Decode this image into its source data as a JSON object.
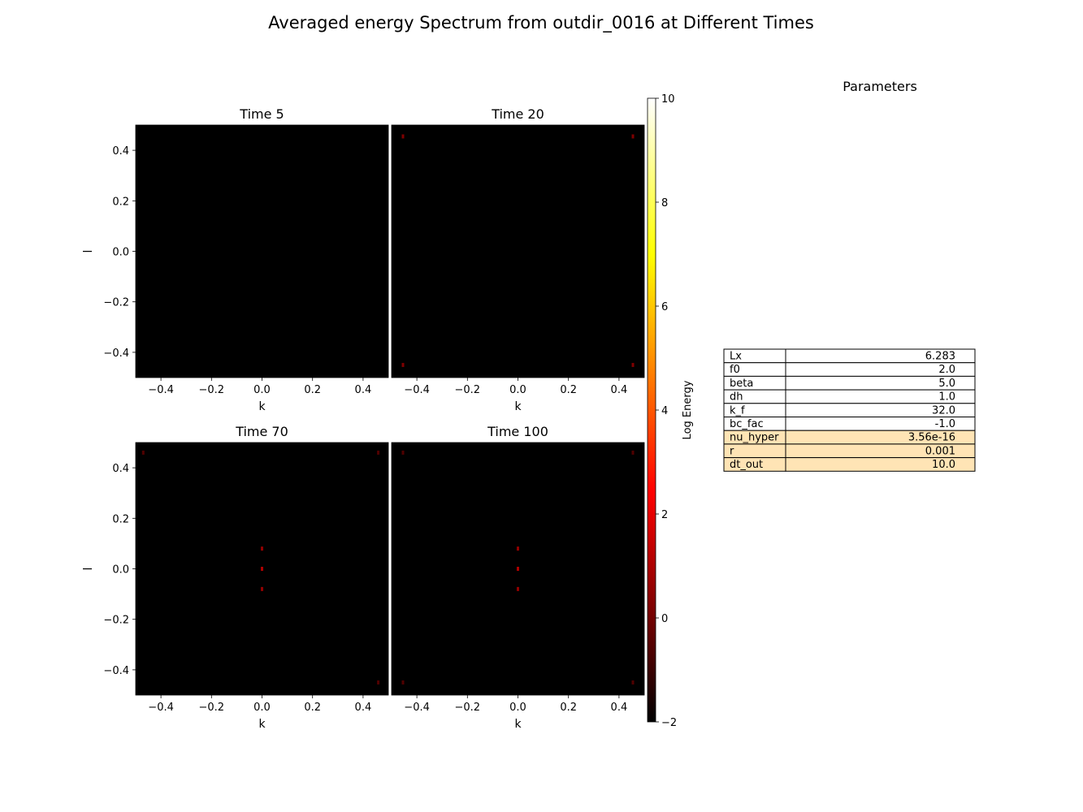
{
  "figure": {
    "title": "Averaged energy Spectrum from outdir_0016 at Different Times"
  },
  "chart_data": [
    {
      "type": "heatmap",
      "title": "Time 5",
      "xlabel": "k",
      "ylabel": "l",
      "xlim": [
        -0.5,
        0.5
      ],
      "ylim": [
        -0.5,
        0.5
      ],
      "xticks": [
        -0.4,
        -0.2,
        0.0,
        0.2,
        0.4
      ],
      "yticks": [
        -0.4,
        -0.2,
        0.0,
        0.2,
        0.4
      ],
      "background_value": -2,
      "points": []
    },
    {
      "type": "heatmap",
      "title": "Time 20",
      "xlabel": "k",
      "ylabel": "",
      "xlim": [
        -0.5,
        0.5
      ],
      "ylim": [
        -0.5,
        0.5
      ],
      "xticks": [
        -0.4,
        -0.2,
        0.0,
        0.2,
        0.4
      ],
      "yticks": [],
      "background_value": -2,
      "points": [
        {
          "k": -0.455,
          "l": 0.455,
          "v": 0.2
        },
        {
          "k": 0.455,
          "l": 0.455,
          "v": 0.2
        },
        {
          "k": -0.455,
          "l": -0.45,
          "v": 0.2
        },
        {
          "k": 0.455,
          "l": -0.45,
          "v": 0.2
        }
      ]
    },
    {
      "type": "heatmap",
      "title": "Time 70",
      "xlabel": "k",
      "ylabel": "l",
      "xlim": [
        -0.5,
        0.5
      ],
      "ylim": [
        -0.5,
        0.5
      ],
      "xticks": [
        -0.4,
        -0.2,
        0.0,
        0.2,
        0.4
      ],
      "yticks": [
        -0.4,
        -0.2,
        0.0,
        0.2,
        0.4
      ],
      "background_value": -2,
      "points": [
        {
          "k": 0.0,
          "l": 0.08,
          "v": 0.5
        },
        {
          "k": 0.0,
          "l": 0.0,
          "v": 1.0
        },
        {
          "k": 0.0,
          "l": -0.08,
          "v": 0.5
        },
        {
          "k": -0.47,
          "l": 0.46,
          "v": -0.6
        },
        {
          "k": 0.46,
          "l": 0.46,
          "v": -0.6
        },
        {
          "k": 0.46,
          "l": -0.45,
          "v": -0.6
        }
      ]
    },
    {
      "type": "heatmap",
      "title": "Time 100",
      "xlabel": "k",
      "ylabel": "",
      "xlim": [
        -0.5,
        0.5
      ],
      "ylim": [
        -0.5,
        0.5
      ],
      "xticks": [
        -0.4,
        -0.2,
        0.0,
        0.2,
        0.4
      ],
      "yticks": [],
      "background_value": -2,
      "points": [
        {
          "k": 0.0,
          "l": 0.08,
          "v": 0.5
        },
        {
          "k": 0.0,
          "l": 0.0,
          "v": 1.0
        },
        {
          "k": 0.0,
          "l": -0.08,
          "v": 0.5
        },
        {
          "k": -0.455,
          "l": 0.46,
          "v": -0.6
        },
        {
          "k": 0.455,
          "l": 0.46,
          "v": -0.6
        },
        {
          "k": 0.455,
          "l": -0.45,
          "v": -0.6
        },
        {
          "k": -0.455,
          "l": -0.45,
          "v": -0.6
        }
      ]
    }
  ],
  "colorbar": {
    "label": "Log Energy",
    "range": [
      -2,
      10
    ],
    "ticks": [
      -2,
      0,
      2,
      4,
      6,
      8,
      10
    ],
    "colormap": "hot",
    "colors": [
      "#000000",
      "#ff0000",
      "#ffff00",
      "#ffffff"
    ]
  },
  "params_table": {
    "title": "Parameters",
    "rows": [
      {
        "name": "Lx",
        "value": "6.283"
      },
      {
        "name": "f0",
        "value": "2.0"
      },
      {
        "name": "beta",
        "value": "5.0"
      },
      {
        "name": "dh",
        "value": "1.0"
      },
      {
        "name": "k_f",
        "value": "32.0"
      },
      {
        "name": "bc_fac",
        "value": "-1.0"
      },
      {
        "name": "nu_hyper",
        "value": "3.56e-16",
        "highlight": true
      },
      {
        "name": "r",
        "value": "0.001",
        "highlight": true
      },
      {
        "name": "dt_out",
        "value": "10.0",
        "highlight": true
      }
    ],
    "highlight_color": "#ffe4b5"
  }
}
